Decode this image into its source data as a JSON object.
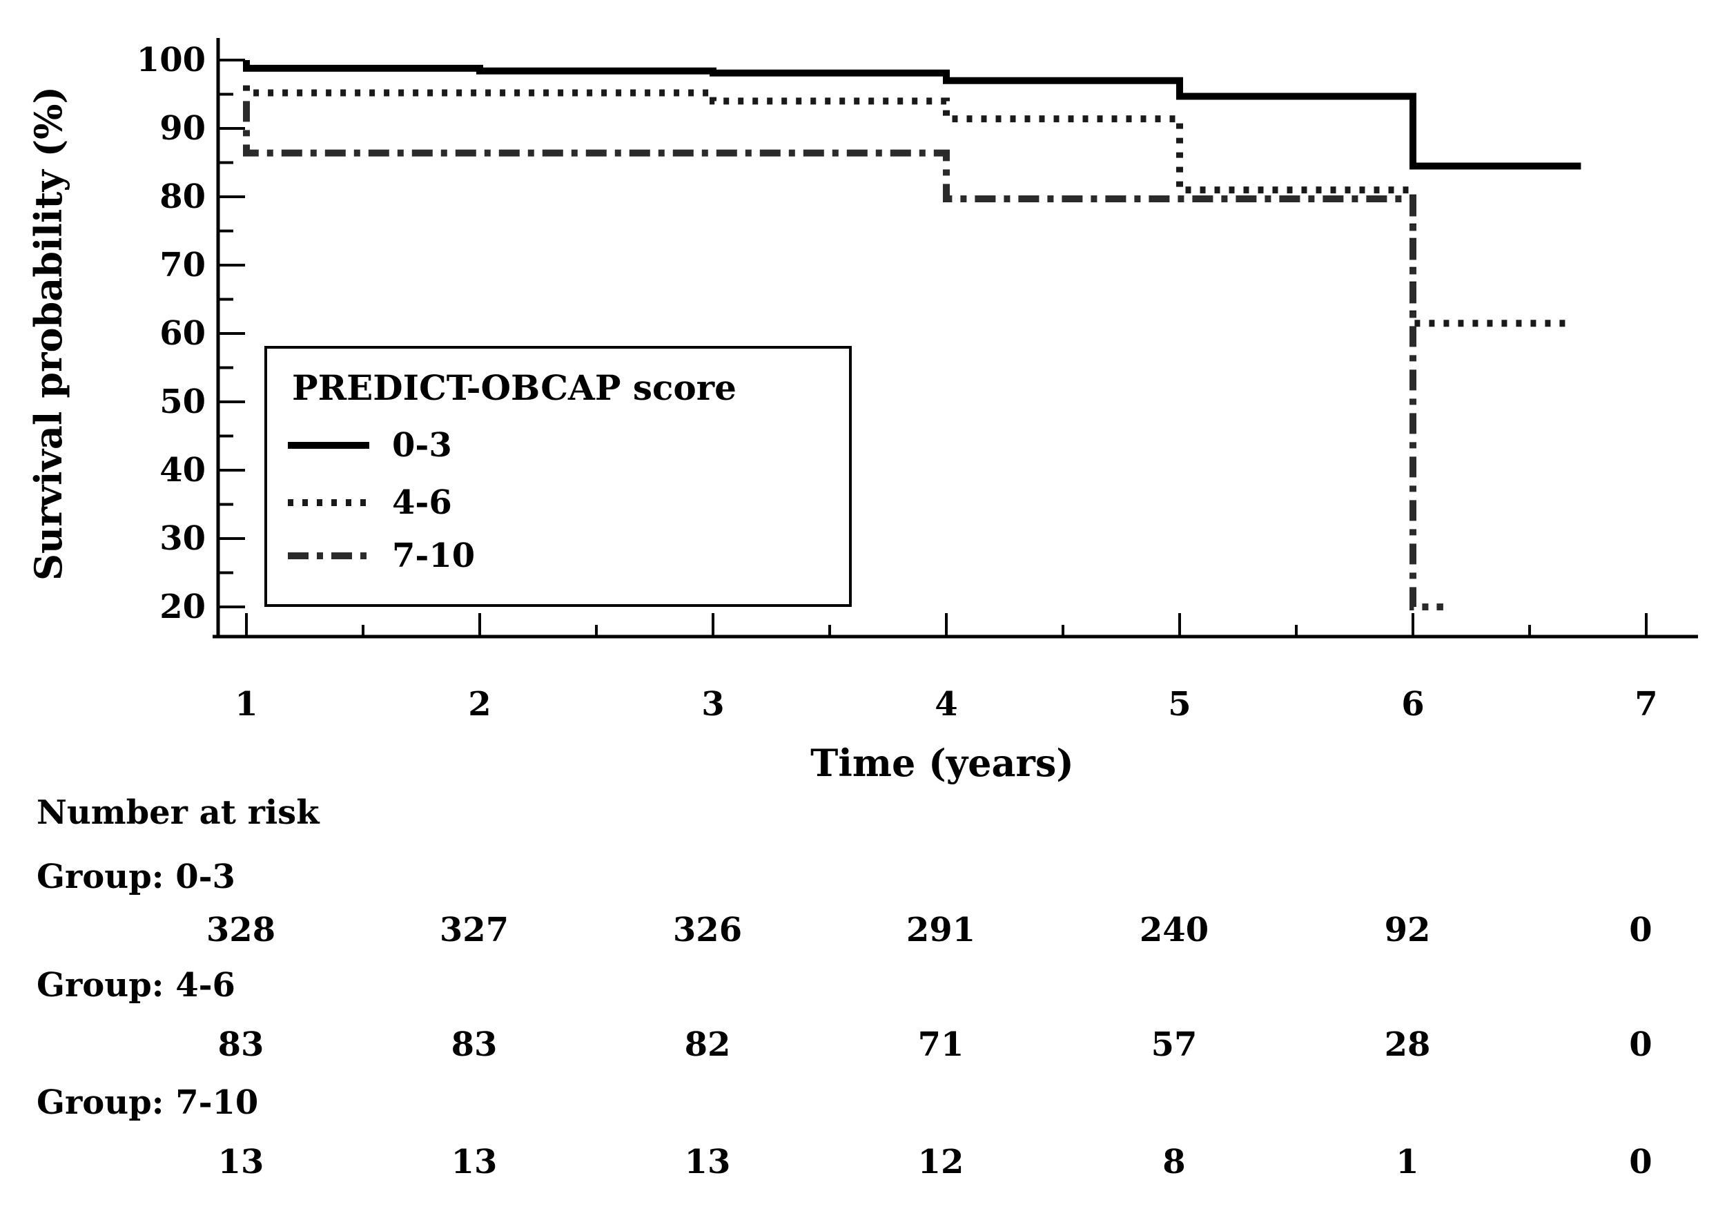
{
  "figure": {
    "background": "#ffffff",
    "ink_color": "#000000",
    "dashdot_color": "#2b2b2b",
    "dotted_color": "#1a1a1a"
  },
  "chart_data": {
    "type": "line",
    "subtype": "kaplan-meier-step",
    "title": "",
    "xlabel": "Time (years)",
    "ylabel": "Survival probability (%)",
    "xlim": [
      1,
      7.2
    ],
    "ylim": [
      16,
      103
    ],
    "x_ticks": [
      1,
      2,
      3,
      4,
      5,
      6,
      7
    ],
    "x_minor_ticks": [
      1.5,
      2.5,
      3.5,
      4.5,
      5.5,
      6.5
    ],
    "y_ticks": [
      100,
      90,
      80,
      70,
      60,
      50,
      40,
      30,
      20
    ],
    "y_minor_ticks": [
      95,
      85,
      75,
      65,
      55,
      45,
      35,
      25
    ],
    "grid": "off",
    "legend": {
      "title": "PREDICT-OBCAP score",
      "position": "inside-left-middle"
    },
    "series": [
      {
        "name": "0-3",
        "style": "solid",
        "color": "#000000",
        "points": [
          [
            1,
            100
          ],
          [
            1,
            98.8
          ],
          [
            2,
            98.8
          ],
          [
            2,
            98.4
          ],
          [
            3,
            98.4
          ],
          [
            3,
            98.1
          ],
          [
            4,
            98.1
          ],
          [
            4,
            97.0
          ],
          [
            5,
            97.0
          ],
          [
            5,
            94.7
          ],
          [
            6,
            94.7
          ],
          [
            6,
            84.5
          ],
          [
            6.72,
            84.5
          ]
        ]
      },
      {
        "name": "4-6",
        "style": "dotted",
        "color": "#1a1a1a",
        "points": [
          [
            1,
            96.3
          ],
          [
            1,
            95.2
          ],
          [
            3,
            95.2
          ],
          [
            3,
            94.0
          ],
          [
            4,
            94.0
          ],
          [
            4,
            91.4
          ],
          [
            5,
            91.4
          ],
          [
            5,
            81.0
          ],
          [
            6,
            81.0
          ],
          [
            6,
            61.5
          ],
          [
            6.68,
            61.5
          ]
        ]
      },
      {
        "name": "7-10",
        "style": "dashdot",
        "color": "#2b2b2b",
        "points": [
          [
            1,
            94.0
          ],
          [
            1,
            86.4
          ],
          [
            4,
            86.4
          ],
          [
            4,
            79.7
          ],
          [
            6,
            79.7
          ],
          [
            6,
            20.0
          ],
          [
            6.13,
            20.0
          ]
        ]
      }
    ]
  },
  "risk_table": {
    "header": "Number at risk",
    "time_columns": [
      1,
      2,
      3,
      4,
      5,
      6,
      7
    ],
    "groups": [
      {
        "label": "Group: 0-3",
        "values": [
          "328",
          "327",
          "326",
          "291",
          "240",
          "92",
          "0"
        ]
      },
      {
        "label": "Group: 4-6",
        "values": [
          "83",
          "83",
          "82",
          "71",
          "57",
          "28",
          "0"
        ]
      },
      {
        "label": "Group: 7-10",
        "values": [
          "13",
          "13",
          "13",
          "12",
          "8",
          "1",
          "0"
        ]
      }
    ]
  }
}
